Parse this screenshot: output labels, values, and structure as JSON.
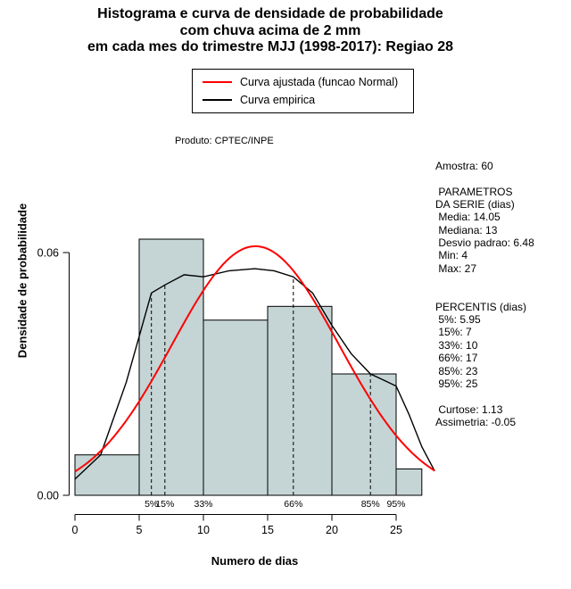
{
  "chart_data": {
    "type": "histogram+density",
    "title_lines": [
      "Histograma e curva de densidade de probabilidade",
      "com chuva acima de 2 mm",
      "em cada mes do trimestre MJJ (1998-2017): Regiao 28"
    ],
    "xlabel": "Numero de dias",
    "ylabel": "Densidade de probabilidade",
    "annotation": "Produto: CPTEC/INPE",
    "legend": {
      "items": [
        {
          "label": "Curva ajustada (funcao Normal)",
          "color": "#ff0000"
        },
        {
          "label": "Curva empirica",
          "color": "#000000"
        }
      ]
    },
    "x_ticks": [
      0,
      5,
      10,
      15,
      20,
      25
    ],
    "y_ticks": [
      0,
      0.06
    ],
    "y_tick_labels": [
      "0.00",
      "0.06"
    ],
    "xlim": [
      0,
      28
    ],
    "ylim": [
      0,
      0.072
    ],
    "bar_fill": "#c5d5d5",
    "bar_stroke": "#000000",
    "bins": [
      {
        "x0": 0,
        "x1": 5,
        "density": 0.01
      },
      {
        "x0": 5,
        "x1": 10,
        "density": 0.0633
      },
      {
        "x0": 10,
        "x1": 15,
        "density": 0.0433
      },
      {
        "x0": 15,
        "x1": 20,
        "density": 0.0467
      },
      {
        "x0": 20,
        "x1": 25,
        "density": 0.03
      },
      {
        "x0": 25,
        "x1": 27,
        "density": 0.0065
      }
    ],
    "normal_curve": {
      "mean": 14.05,
      "sd": 6.48,
      "color": "#ff0000"
    },
    "empirical_curve": {
      "color": "#000000",
      "points": [
        [
          0,
          0.004
        ],
        [
          2,
          0.01
        ],
        [
          4,
          0.028
        ],
        [
          5.95,
          0.05
        ],
        [
          7,
          0.052
        ],
        [
          8.5,
          0.0545
        ],
        [
          10,
          0.054
        ],
        [
          12,
          0.0555
        ],
        [
          14,
          0.056
        ],
        [
          15.5,
          0.0555
        ],
        [
          17,
          0.054
        ],
        [
          18.5,
          0.05
        ],
        [
          20,
          0.042
        ],
        [
          21.5,
          0.035
        ],
        [
          23,
          0.03
        ],
        [
          24,
          0.0285
        ],
        [
          25,
          0.027
        ],
        [
          26,
          0.02
        ],
        [
          27,
          0.012
        ],
        [
          28,
          0.006
        ]
      ]
    },
    "percentile_lines": [
      {
        "label": "5%",
        "x": 5.95,
        "top": 0.05
      },
      {
        "label": "15%",
        "x": 7,
        "top": 0.052
      },
      {
        "label": "33%",
        "x": 10,
        "top": 0.054
      },
      {
        "label": "66%",
        "x": 17,
        "top": 0.054
      },
      {
        "label": "85%",
        "x": 23,
        "top": 0.03
      },
      {
        "label": "95%",
        "x": 25,
        "top": 0.027
      }
    ],
    "stats": {
      "amostra": 60,
      "media": 14.05,
      "mediana": 13,
      "desvio_padrao": 6.48,
      "min": 4,
      "max": 27,
      "percentis": {
        "5": 5.95,
        "15": 7,
        "33": 10,
        "66": 17,
        "85": 23,
        "95": 25
      },
      "curtose": 1.13,
      "assimetria": -0.05
    }
  },
  "stats_panel": {
    "lines": [
      "Amostra: 60",
      "",
      " PARAMETROS",
      "DA SERIE (dias)",
      " Media: 14.05",
      " Mediana: 13",
      " Desvio padrao: 6.48",
      " Min: 4",
      " Max: 27",
      "",
      "",
      "PERCENTIS (dias)",
      " 5%: 5.95",
      " 15%: 7",
      " 33%: 10",
      " 66%: 17",
      " 85%: 23",
      " 95%: 25",
      "",
      " Curtose: 1.13",
      "Assimetria: -0.05"
    ]
  }
}
